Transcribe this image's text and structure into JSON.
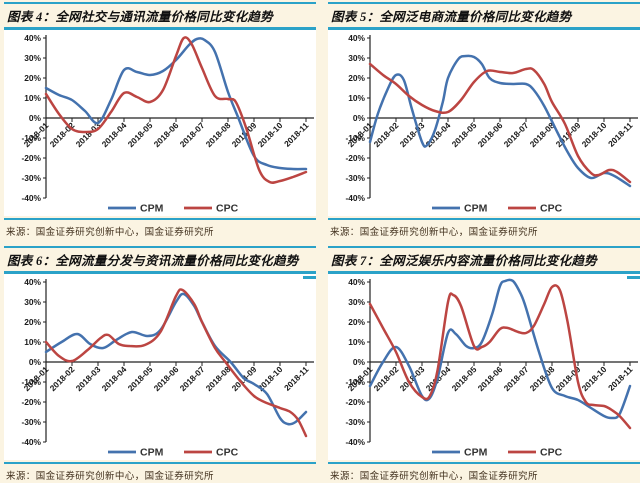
{
  "page": {
    "background_color": "#FBF4E2",
    "rule_color": "#2BA2C8",
    "series_colors": {
      "CPM": "#4472AE",
      "CPC": "#BC4542"
    }
  },
  "source_note": "来源：国金证券研究创新中心，国金证券研究所",
  "chart_data": [
    {
      "id": "figure-4",
      "type": "line",
      "title": "图表 4：全网社交与通讯流量价格同比变化趋势",
      "x_tick_labels": [
        "2018-01",
        "2018-02",
        "2018-03",
        "2018-04",
        "2018-05",
        "2018-06",
        "2018-07",
        "2018-08",
        "2018-09",
        "2018-10",
        "2018-11"
      ],
      "y_tick_labels": [
        "40%",
        "30%",
        "20%",
        "10%",
        "0%",
        "-10%",
        "-20%",
        "-30%",
        "-40%"
      ],
      "ylim": [
        -40,
        40
      ],
      "grid": false,
      "legend_position": "bottom",
      "series": [
        {
          "name": "CPM",
          "color": "#4472AE",
          "points": [
            [
              1,
              15
            ],
            [
              1.5,
              11.5
            ],
            [
              2,
              9
            ],
            [
              2.5,
              3.5
            ],
            [
              3,
              -2.5
            ],
            [
              3.5,
              9
            ],
            [
              4,
              24
            ],
            [
              4.5,
              23
            ],
            [
              5,
              21.5
            ],
            [
              5.5,
              23.5
            ],
            [
              6,
              29
            ],
            [
              6.5,
              36.5
            ],
            [
              6.8,
              39.5
            ],
            [
              7.1,
              39
            ],
            [
              7.5,
              33
            ],
            [
              8,
              13
            ],
            [
              8.4,
              0
            ],
            [
              9,
              -19
            ],
            [
              9.5,
              -23.5
            ],
            [
              10,
              -25
            ],
            [
              10.5,
              -25.5
            ],
            [
              11,
              -25.5
            ]
          ]
        },
        {
          "name": "CPC",
          "color": "#BC4542",
          "points": [
            [
              1,
              12
            ],
            [
              1.5,
              2
            ],
            [
              2,
              -5.5
            ],
            [
              2.5,
              -7
            ],
            [
              3,
              -5.5
            ],
            [
              3.5,
              3
            ],
            [
              4,
              12.5
            ],
            [
              4.5,
              10.5
            ],
            [
              5,
              8
            ],
            [
              5.5,
              14
            ],
            [
              6,
              31
            ],
            [
              6.3,
              40
            ],
            [
              6.6,
              37
            ],
            [
              7,
              25
            ],
            [
              7.5,
              11
            ],
            [
              8,
              9.5
            ],
            [
              8.3,
              8
            ],
            [
              8.7,
              -5
            ],
            [
              9.2,
              -26
            ],
            [
              9.6,
              -32
            ],
            [
              10,
              -31.5
            ],
            [
              10.5,
              -29.5
            ],
            [
              11,
              -27
            ]
          ]
        }
      ]
    },
    {
      "id": "figure-5",
      "type": "line",
      "title": "图表 5：全网泛电商流量价格同比变化趋势",
      "x_tick_labels": [
        "2018-01",
        "2018-02",
        "2018-03",
        "2018-04",
        "2018-05",
        "2018-06",
        "2018-07",
        "2018-08",
        "2018-09",
        "2018-10",
        "2018-11"
      ],
      "y_tick_labels": [
        "40%",
        "30%",
        "20%",
        "10%",
        "0%",
        "-10%",
        "-20%",
        "-30%",
        "-40%"
      ],
      "ylim": [
        -40,
        40
      ],
      "grid": false,
      "legend_position": "bottom",
      "series": [
        {
          "name": "CPM",
          "color": "#4472AE",
          "points": [
            [
              1,
              -12
            ],
            [
              1.3,
              2
            ],
            [
              1.7,
              15
            ],
            [
              2,
              21.5
            ],
            [
              2.3,
              19
            ],
            [
              2.6,
              5
            ],
            [
              3,
              -12
            ],
            [
              3.2,
              -13.5
            ],
            [
              3.5,
              -6
            ],
            [
              3.8,
              8
            ],
            [
              4,
              20
            ],
            [
              4.4,
              29.5
            ],
            [
              4.7,
              31
            ],
            [
              5,
              30.5
            ],
            [
              5.3,
              27
            ],
            [
              5.6,
              20
            ],
            [
              6,
              17.5
            ],
            [
              6.5,
              17
            ],
            [
              7,
              17
            ],
            [
              7.3,
              14
            ],
            [
              7.7,
              6
            ],
            [
              8.2,
              -7
            ],
            [
              8.6,
              -17
            ],
            [
              9,
              -25
            ],
            [
              9.5,
              -30
            ],
            [
              10,
              -27.5
            ],
            [
              10.4,
              -29
            ],
            [
              11,
              -34
            ]
          ]
        },
        {
          "name": "CPC",
          "color": "#BC4542",
          "points": [
            [
              1,
              27
            ],
            [
              1.5,
              21.5
            ],
            [
              2,
              17
            ],
            [
              2.5,
              11
            ],
            [
              3,
              6.5
            ],
            [
              3.5,
              3.5
            ],
            [
              4,
              3
            ],
            [
              4.5,
              9
            ],
            [
              5,
              18
            ],
            [
              5.5,
              23.5
            ],
            [
              6,
              23
            ],
            [
              6.5,
              22.5
            ],
            [
              7,
              24.5
            ],
            [
              7.3,
              24
            ],
            [
              7.7,
              17
            ],
            [
              8,
              8
            ],
            [
              8.5,
              -3
            ],
            [
              9,
              -19
            ],
            [
              9.5,
              -27.5
            ],
            [
              9.8,
              -28.5
            ],
            [
              10.2,
              -26
            ],
            [
              10.5,
              -27
            ],
            [
              11,
              -32
            ]
          ]
        }
      ]
    },
    {
      "id": "figure-6",
      "type": "line",
      "title": "图表 6：全网流量分发与资讯流量价格同比变化趋势",
      "x_tick_labels": [
        "2018-01",
        "2018-02",
        "2018-03",
        "2018-04",
        "2018-05",
        "2018-06",
        "2018-07",
        "2018-08",
        "2018-09",
        "2018-10",
        "2018-11"
      ],
      "y_tick_labels": [
        "40%",
        "30%",
        "20%",
        "10%",
        "0%",
        "-10%",
        "-20%",
        "-30%",
        "-40%"
      ],
      "ylim": [
        -40,
        40
      ],
      "grid": false,
      "legend_position": "bottom",
      "series": [
        {
          "name": "CPM",
          "color": "#4472AE",
          "points": [
            [
              1,
              5
            ],
            [
              1.6,
              10
            ],
            [
              2.2,
              14
            ],
            [
              2.7,
              9
            ],
            [
              3.2,
              7
            ],
            [
              3.7,
              11
            ],
            [
              4.3,
              15
            ],
            [
              4.9,
              13
            ],
            [
              5.4,
              16
            ],
            [
              6,
              30
            ],
            [
              6.3,
              34
            ],
            [
              6.7,
              28
            ],
            [
              7,
              20
            ],
            [
              7.5,
              8
            ],
            [
              8.1,
              0
            ],
            [
              8.6,
              -8
            ],
            [
              9,
              -11
            ],
            [
              9.5,
              -16
            ],
            [
              10,
              -28
            ],
            [
              10.3,
              -31
            ],
            [
              10.6,
              -30
            ],
            [
              11,
              -25
            ]
          ]
        },
        {
          "name": "CPC",
          "color": "#BC4542",
          "points": [
            [
              1,
              10
            ],
            [
              1.5,
              3
            ],
            [
              2,
              0.5
            ],
            [
              2.6,
              6
            ],
            [
              3.1,
              12
            ],
            [
              3.4,
              13.5
            ],
            [
              3.8,
              9
            ],
            [
              4.2,
              8
            ],
            [
              4.8,
              8.5
            ],
            [
              5.4,
              15
            ],
            [
              6,
              33
            ],
            [
              6.25,
              36
            ],
            [
              6.7,
              29
            ],
            [
              7,
              20
            ],
            [
              7.5,
              7
            ],
            [
              7.9,
              0
            ],
            [
              8.5,
              -10
            ],
            [
              9,
              -17
            ],
            [
              9.4,
              -20
            ],
            [
              10,
              -23
            ],
            [
              10.4,
              -25
            ],
            [
              10.7,
              -29
            ],
            [
              11,
              -37
            ]
          ]
        }
      ]
    },
    {
      "id": "figure-7",
      "type": "line",
      "title": "图表 7：全网泛娱乐内容流量价格同比变化趋势",
      "x_tick_labels": [
        "2018-01",
        "2018-02",
        "2018-03",
        "2018-04",
        "2018-05",
        "2018-06",
        "2018-07",
        "2018-08",
        "2018-09",
        "2018-10",
        "2018-11"
      ],
      "y_tick_labels": [
        "40%",
        "30%",
        "20%",
        "10%",
        "0%",
        "-10%",
        "-20%",
        "-30%",
        "-40%"
      ],
      "ylim": [
        -40,
        40
      ],
      "grid": false,
      "legend_position": "bottom",
      "series": [
        {
          "name": "CPM",
          "color": "#4472AE",
          "points": [
            [
              1,
              -12
            ],
            [
              1.5,
              0
            ],
            [
              2,
              7.5
            ],
            [
              2.5,
              -2
            ],
            [
              3,
              -17
            ],
            [
              3.3,
              -18
            ],
            [
              3.6,
              -8
            ],
            [
              4,
              14.5
            ],
            [
              4.3,
              14
            ],
            [
              4.7,
              8
            ],
            [
              5,
              7
            ],
            [
              5.3,
              10
            ],
            [
              5.7,
              24
            ],
            [
              6,
              38
            ],
            [
              6.2,
              40.5
            ],
            [
              6.5,
              40.5
            ],
            [
              6.8,
              34
            ],
            [
              7,
              27
            ],
            [
              7.5,
              5
            ],
            [
              8,
              -13
            ],
            [
              8.5,
              -17
            ],
            [
              9,
              -19
            ],
            [
              9.5,
              -23
            ],
            [
              10,
              -27
            ],
            [
              10.3,
              -28
            ],
            [
              10.6,
              -26
            ],
            [
              11,
              -12
            ]
          ]
        },
        {
          "name": "CPC",
          "color": "#BC4542",
          "points": [
            [
              1,
              29
            ],
            [
              1.5,
              17
            ],
            [
              2,
              5
            ],
            [
              2.5,
              -10
            ],
            [
              3,
              -17.5
            ],
            [
              3.3,
              -17
            ],
            [
              3.6,
              -4
            ],
            [
              4,
              30
            ],
            [
              4.2,
              33.5
            ],
            [
              4.5,
              28
            ],
            [
              5,
              8
            ],
            [
              5.3,
              7.5
            ],
            [
              5.6,
              10
            ],
            [
              6,
              16.5
            ],
            [
              6.3,
              17
            ],
            [
              6.7,
              15
            ],
            [
              7,
              14.5
            ],
            [
              7.3,
              18
            ],
            [
              7.7,
              29
            ],
            [
              8,
              37.5
            ],
            [
              8.3,
              36
            ],
            [
              8.6,
              20
            ],
            [
              9,
              -10
            ],
            [
              9.3,
              -20
            ],
            [
              9.6,
              -21.5
            ],
            [
              10,
              -22
            ],
            [
              10.3,
              -24
            ],
            [
              10.6,
              -27
            ],
            [
              11,
              -33
            ]
          ]
        }
      ]
    }
  ]
}
